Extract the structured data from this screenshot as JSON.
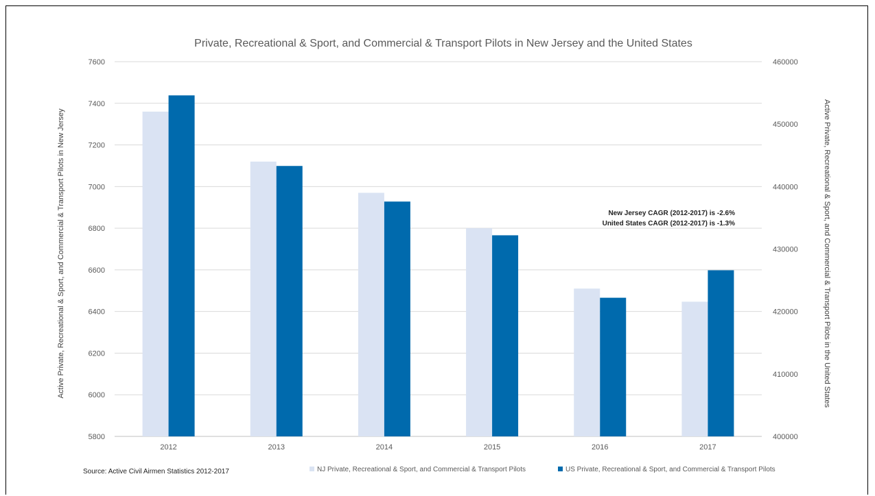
{
  "chart_data": {
    "type": "bar",
    "title": "Private, Recreational & Sport, and Commercial & Transport Pilots in New Jersey and the United States",
    "categories": [
      "2012",
      "2013",
      "2014",
      "2015",
      "2016",
      "2017"
    ],
    "series": [
      {
        "name": "NJ Private, Recreational & Sport, and Commercial & Transport Pilots",
        "axis": "left",
        "color": "#dae3f3",
        "values": [
          7360,
          7120,
          6970,
          6800,
          6510,
          6447
        ]
      },
      {
        "name": "US Private, Recreational & Sport, and Commercial & Transport Pilots",
        "axis": "right",
        "color": "#006aad",
        "values": [
          454600,
          443300,
          437600,
          432200,
          422200,
          426600
        ]
      }
    ],
    "y_left": {
      "label": "Active Private, Recreational & Sport, and Commercial & Transport Pilots in New Jersey",
      "ylim": [
        5800,
        7600
      ],
      "ticks": [
        "7600",
        "7400",
        "7200",
        "7000",
        "6800",
        "6600",
        "6400",
        "6200",
        "6000",
        "5800"
      ]
    },
    "y_right": {
      "label": "Active Private, Recreational & Sport, and Commercial & Transport Pilots in the United States",
      "ylim": [
        400000,
        460000
      ],
      "ticks": [
        "460000",
        "450000",
        "440000",
        "430000",
        "420000",
        "410000",
        "400000"
      ]
    },
    "annotations": [
      "New Jersey CAGR (2012-2017) is -2.6%",
      "United States CAGR (2012-2017) is -1.3%"
    ],
    "source": "Source: Active Civil Airmen Statistics 2012-2017",
    "grid": true,
    "legend_position": "bottom"
  }
}
